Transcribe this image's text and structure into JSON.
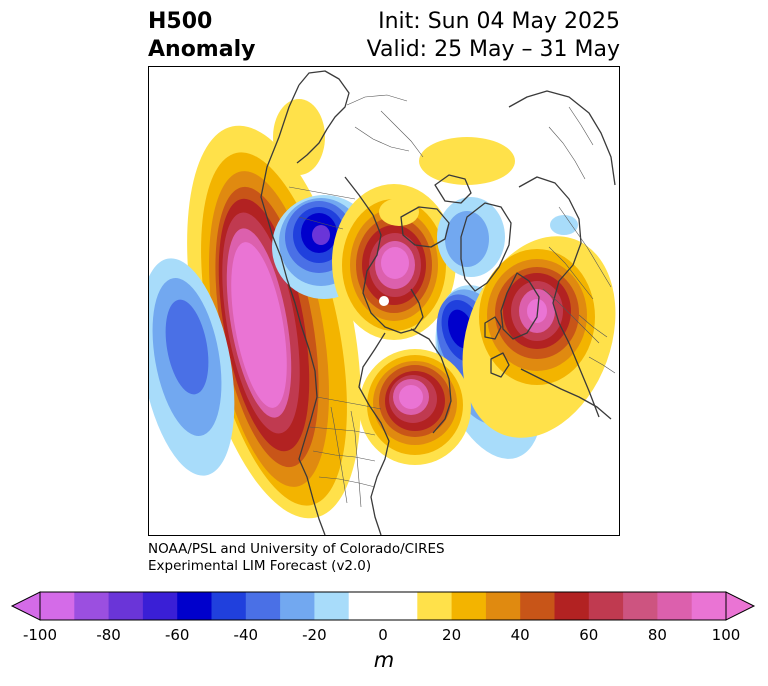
{
  "title": {
    "left_line1": "H500",
    "left_line2": "Anomaly",
    "right_line1": "Init: Sun 04 May 2025",
    "right_line2": "Valid: 25 May – 31 May"
  },
  "credit": {
    "line1": "NOAA/PSL and University of Colorado/CIRES",
    "line2": "Experimental LIM Forecast (v2.0)"
  },
  "colorbar": {
    "unit": "m",
    "tick_labels": [
      "-100",
      "-80",
      "-60",
      "-40",
      "-20",
      "0",
      "20",
      "40",
      "60",
      "80",
      "100"
    ],
    "colors": [
      "#d46be8",
      "#9b4fe0",
      "#6a35d8",
      "#3a1fd6",
      "#0000cc",
      "#2040dd",
      "#4a70e6",
      "#72a8f0",
      "#a8dcfa",
      "#ffffff",
      "#ffffff",
      "#ffe14a",
      "#f3b400",
      "#e08a10",
      "#c85518",
      "#b22222",
      "#c03a50",
      "#cd5480",
      "#dc60ad",
      "#ea74d4"
    ],
    "min_color": "#d46be8",
    "max_color": "#ea74d4"
  }
}
